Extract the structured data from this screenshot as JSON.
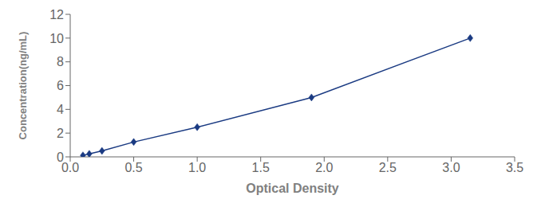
{
  "chart_data": {
    "type": "line",
    "x": [
      0.1,
      0.15,
      0.25,
      0.5,
      1.0,
      1.9,
      3.15
    ],
    "values": [
      0.125,
      0.25,
      0.5,
      1.25,
      2.5,
      5.0,
      10.0
    ],
    "color": "#1A3A82",
    "marker": "diamond",
    "xlabel": "Optical Density",
    "ylabel": "Concentration(ng/mL)",
    "xlim": [
      0,
      3.5
    ],
    "ylim": [
      0,
      12
    ],
    "xticks": [
      {
        "value": 0,
        "label": "0.0"
      },
      0.5,
      {
        "value": 1,
        "label": "1.0"
      },
      1.5,
      {
        "value": 2,
        "label": "2.0"
      },
      2.5,
      {
        "value": 3,
        "label": "3.0"
      },
      3.5
    ],
    "yticks": [
      0,
      2,
      4,
      6,
      8,
      10,
      12
    ],
    "grid": false
  }
}
